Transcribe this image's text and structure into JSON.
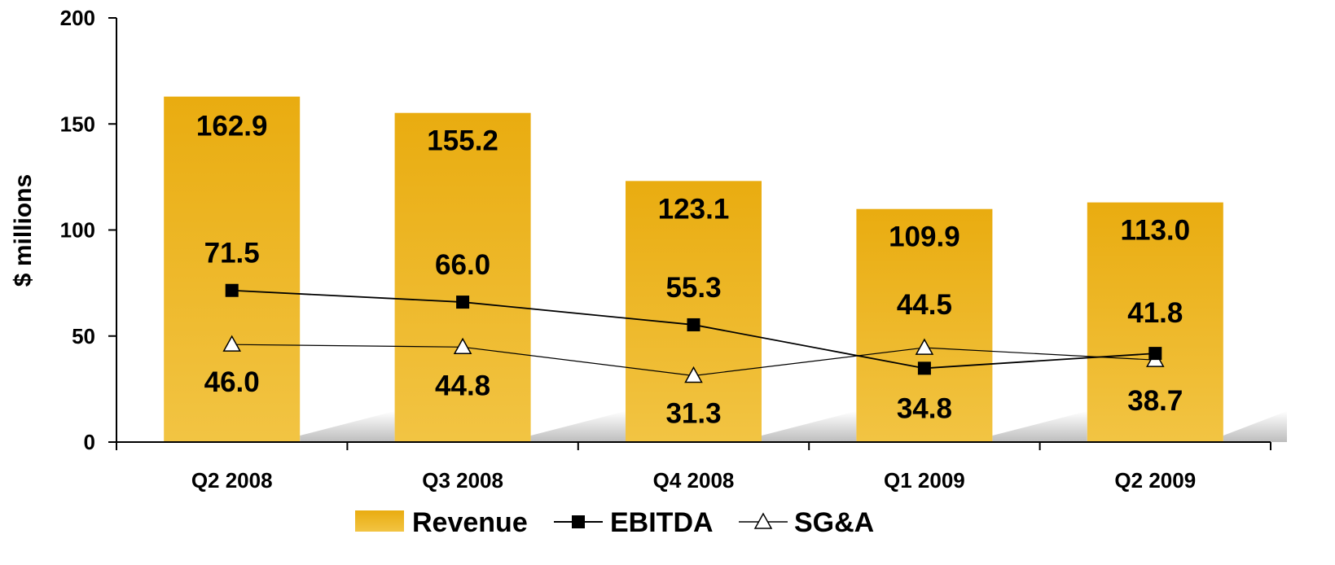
{
  "chart_data": {
    "type": "bar",
    "categories": [
      "Q2 2008",
      "Q3 2008",
      "Q4 2008",
      "Q1 2009",
      "Q2 2009"
    ],
    "ylabel": "$ millions",
    "ylim": [
      0,
      200
    ],
    "yticks": [
      0,
      50,
      100,
      150,
      200
    ],
    "grid": false,
    "legend_position": "bottom",
    "series": [
      {
        "name": "Revenue",
        "type": "bar",
        "values": [
          162.9,
          155.2,
          123.1,
          109.9,
          113.0
        ],
        "labels": [
          "162.9",
          "155.2",
          "123.1",
          "109.9",
          "113.0"
        ],
        "color": "#E9AE16"
      },
      {
        "name": "EBITDA",
        "type": "line",
        "marker": "filled-square",
        "values": [
          71.5,
          66.0,
          55.3,
          34.8,
          41.8
        ],
        "labels": [
          "71.5",
          "66.0",
          "55.3",
          "34.8",
          "41.8"
        ],
        "color": "#000000"
      },
      {
        "name": "SG&A",
        "type": "line",
        "marker": "open-triangle",
        "values": [
          46.0,
          44.8,
          31.3,
          44.5,
          38.7
        ],
        "labels": [
          "46.0",
          "44.8",
          "31.3",
          "44.5",
          "38.7"
        ],
        "color": "#000000"
      }
    ]
  }
}
